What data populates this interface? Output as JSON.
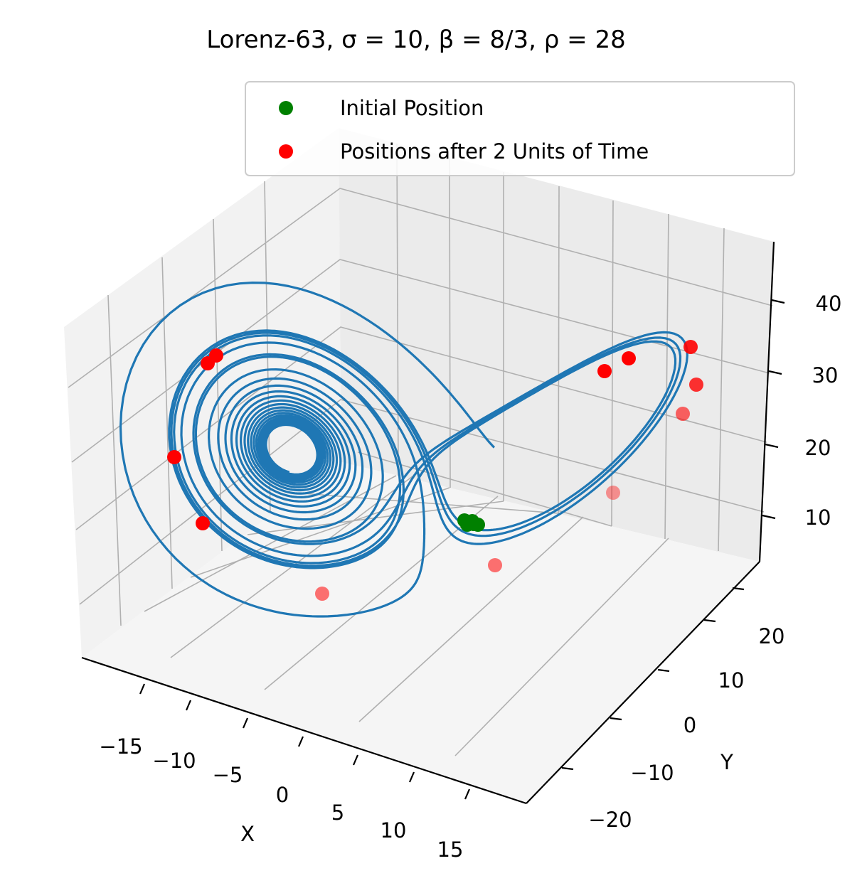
{
  "chart_data": {
    "type": "line3d",
    "title": "Lorenz-63, σ = 10, β = 8/3, ρ = 28",
    "xlabel": "X",
    "ylabel": "Y",
    "zlabel": "",
    "x_ticks": [
      "−15",
      "−10",
      "−5",
      "0",
      "5",
      "10",
      "15"
    ],
    "y_ticks": [
      "−20",
      "−10",
      "0",
      "10",
      "20"
    ],
    "z_ticks": [
      "10",
      "20",
      "30",
      "40"
    ],
    "grid": true,
    "legend_position": "top-right",
    "legend": [
      {
        "label": "Initial Position",
        "color": "#008000"
      },
      {
        "label": "Positions after 2 Units of Time",
        "color": "#ff0000"
      }
    ],
    "series": [
      {
        "name": "",
        "kind": "trajectory",
        "color": "#1f77b4"
      }
    ],
    "colors": {
      "trajectory": "#1f77b4",
      "initial": "#008000",
      "final": "#ff0000",
      "pane": "#f2f2f2",
      "grid": "#b0b0b0"
    }
  }
}
